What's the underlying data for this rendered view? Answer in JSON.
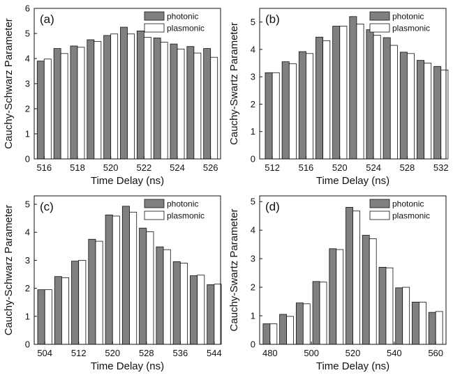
{
  "chart_data": [
    {
      "type": "bar",
      "panel_label": "(a)",
      "xlabel": "Time Delay (ns)",
      "ylabel": "Cauchy-Schwarz Parameter",
      "xlim": [
        515.4,
        526.6
      ],
      "ylim": [
        0,
        6
      ],
      "xticks": [
        516,
        518,
        520,
        522,
        524,
        526
      ],
      "yticks": [
        0,
        1,
        2,
        3,
        4,
        5,
        6
      ],
      "legend_position": "top-right",
      "x": [
        516,
        517,
        518,
        519,
        520,
        521,
        522,
        523,
        524,
        525,
        526
      ],
      "series": [
        {
          "name": "photonic",
          "color": "#808080",
          "values": [
            3.9,
            4.4,
            4.5,
            4.75,
            4.92,
            5.25,
            5.1,
            4.82,
            4.58,
            4.48,
            4.4
          ]
        },
        {
          "name": "plasmonic",
          "color": "#ffffff",
          "values": [
            3.98,
            4.2,
            4.45,
            4.68,
            4.98,
            4.98,
            4.85,
            4.65,
            4.38,
            4.22,
            4.05
          ]
        }
      ]
    },
    {
      "type": "bar",
      "panel_label": "(b)",
      "xlabel": "Time Delay (ns)",
      "ylabel": "Cauchy-Swartz Parameter",
      "xlim": [
        510.5,
        532.6
      ],
      "ylim": [
        0,
        5.5
      ],
      "xticks": [
        512,
        516,
        520,
        524,
        528,
        532
      ],
      "yticks": [
        0,
        1,
        2,
        3,
        4,
        5
      ],
      "legend_position": "top-right",
      "x": [
        512,
        514,
        516,
        518,
        520,
        522,
        524,
        526,
        528,
        530,
        532
      ],
      "series": [
        {
          "name": "photonic",
          "color": "#808080",
          "values": [
            3.15,
            3.55,
            3.92,
            4.45,
            4.85,
            5.2,
            4.72,
            4.43,
            3.9,
            3.6,
            3.38
          ]
        },
        {
          "name": "plasmonic",
          "color": "#ffffff",
          "values": [
            3.15,
            3.48,
            3.85,
            4.32,
            4.85,
            4.93,
            4.52,
            4.15,
            3.85,
            3.5,
            3.25
          ]
        }
      ]
    },
    {
      "type": "bar",
      "panel_label": "(c)",
      "xlabel": "Time Delay (ns)",
      "ylabel": "Cauchy-Schwarz Parameter",
      "xlim": [
        501.5,
        545.5
      ],
      "ylim": [
        0,
        5.3
      ],
      "xticks": [
        504,
        512,
        520,
        528,
        536,
        544
      ],
      "yticks": [
        0,
        1,
        2,
        3,
        4,
        5
      ],
      "legend_position": "top-right",
      "x": [
        504,
        508,
        512,
        516,
        520,
        524,
        528,
        532,
        536,
        540,
        544
      ],
      "series": [
        {
          "name": "photonic",
          "color": "#808080",
          "values": [
            1.95,
            2.42,
            2.97,
            3.75,
            4.62,
            4.93,
            4.15,
            3.48,
            2.95,
            2.45,
            2.13
          ]
        },
        {
          "name": "plasmonic",
          "color": "#ffffff",
          "values": [
            1.95,
            2.38,
            3.0,
            3.68,
            4.58,
            4.72,
            4.02,
            3.38,
            2.9,
            2.47,
            2.15
          ]
        }
      ]
    },
    {
      "type": "bar",
      "panel_label": "(d)",
      "xlabel": "Time Delay (ns)",
      "ylabel": "Cauchy-Swartz Parameter",
      "xlim": [
        475,
        565
      ],
      "ylim": [
        0,
        5.2
      ],
      "xticks": [
        480,
        500,
        520,
        540,
        560
      ],
      "yticks": [
        0,
        1,
        2,
        3,
        4,
        5
      ],
      "legend_position": "top-right",
      "x": [
        480,
        488,
        496,
        504,
        512,
        520,
        528,
        536,
        544,
        552,
        560
      ],
      "series": [
        {
          "name": "photonic",
          "color": "#808080",
          "values": [
            0.72,
            1.05,
            1.45,
            2.2,
            3.35,
            4.8,
            3.82,
            2.7,
            1.98,
            1.48,
            1.12
          ]
        },
        {
          "name": "plasmonic",
          "color": "#ffffff",
          "values": [
            0.72,
            0.98,
            1.42,
            2.18,
            3.32,
            4.67,
            3.7,
            2.68,
            2.0,
            1.48,
            1.15
          ]
        }
      ]
    }
  ]
}
